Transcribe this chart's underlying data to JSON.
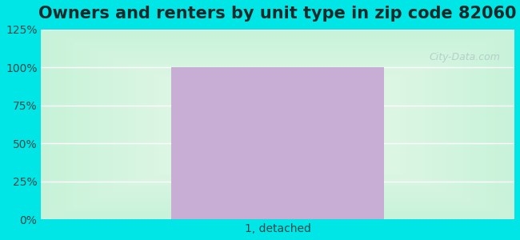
{
  "title": "Owners and renters by unit type in zip code 82060",
  "categories": [
    "1, detached"
  ],
  "values": [
    100
  ],
  "bar_color": "#c8aed4",
  "bar_alpha": 1.0,
  "ylim": [
    0,
    125
  ],
  "yticks": [
    0,
    25,
    50,
    75,
    100,
    125
  ],
  "ytick_labels": [
    "0%",
    "25%",
    "50%",
    "75%",
    "100%",
    "125%"
  ],
  "title_fontsize": 15,
  "tick_fontsize": 10,
  "xlabel_fontsize": 10,
  "outer_bg_color": "#00e5e5",
  "watermark_text": "City-Data.com",
  "watermark_color": "#b0c8c8",
  "bar_width": 0.45
}
